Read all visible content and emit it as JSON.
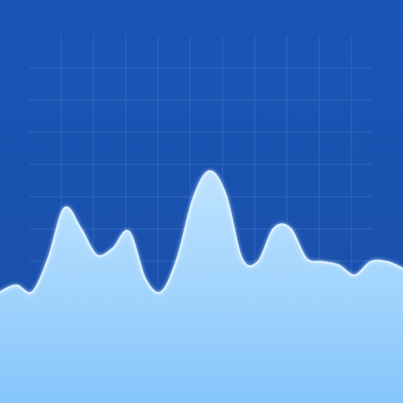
{
  "colors": {
    "background_top": "#1b55b6",
    "background_bottom": "#1a4fa8",
    "grid_line": "#3f74c8",
    "area_fill_top": "#bfe3ff",
    "area_fill_bottom": "#86c6fb",
    "area_stroke": "#d9f0ff"
  },
  "chart_data": {
    "type": "area",
    "x": [
      0,
      1,
      2,
      3,
      4,
      5,
      6,
      7,
      8,
      9,
      10,
      11,
      12,
      13,
      14,
      15,
      16,
      17,
      18,
      19,
      20,
      21,
      22,
      23,
      24,
      25
    ],
    "values": [
      3.3,
      3.5,
      3.3,
      4.3,
      5.8,
      5.2,
      4.4,
      4.6,
      5.1,
      3.7,
      3.3,
      4.3,
      6.1,
      6.9,
      6.2,
      4.3,
      4.2,
      5.2,
      5.2,
      4.3,
      4.2,
      4.1,
      3.8,
      4.2,
      4.2,
      4.0
    ],
    "xlim": [
      0,
      25
    ],
    "ylim": [
      0,
      12
    ],
    "grid": true,
    "grid_columns": 11,
    "grid_rows": 7,
    "legend": "none",
    "title": "",
    "xlabel": "",
    "ylabel": ""
  }
}
